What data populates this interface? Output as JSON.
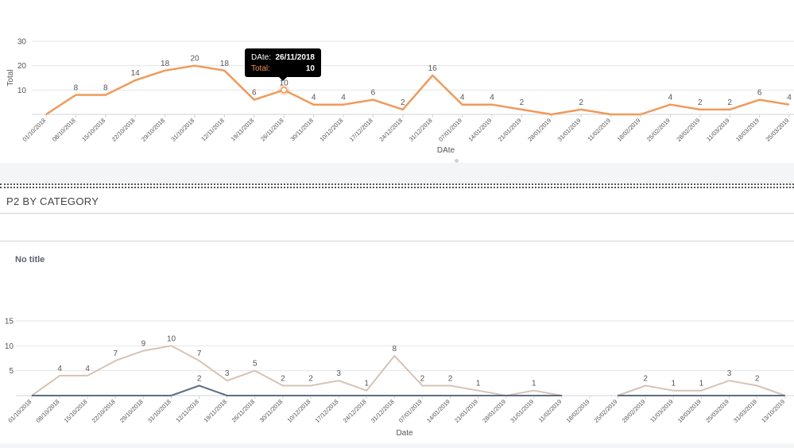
{
  "section": {
    "title": "P2 BY CATEGORY",
    "subtitle": "No title"
  },
  "tooltip": {
    "key_date": "DAte:",
    "value_date": "26/11/2018",
    "key_total": "Total:",
    "value_total": "10"
  },
  "chart_data": [
    {
      "type": "line",
      "xlabel": "DAte",
      "ylabel": "Total",
      "ylim": [
        0,
        30
      ],
      "yticks": [
        10,
        20,
        30
      ],
      "grid": true,
      "color": "#ef9a5b",
      "categories": [
        "01/10/2018",
        "08/10/2018",
        "15/10/2018",
        "22/10/2018",
        "29/10/2018",
        "31/10/2018",
        "12/11/2018",
        "19/11/2018",
        "26/11/2018",
        "30/11/2018",
        "10/12/2018",
        "17/12/2018",
        "24/12/2018",
        "31/12/2018",
        "07/01/2019",
        "14/01/2019",
        "21/01/2019",
        "28/01/2019",
        "31/01/2019",
        "11/02/2019",
        "18/02/2019",
        "25/02/2019",
        "28/02/2019",
        "11/03/2019",
        "18/03/2019",
        "25/03/2019"
      ],
      "series": [
        {
          "values": [
            0,
            8,
            8,
            14,
            18,
            20,
            18,
            6,
            10,
            4,
            4,
            6,
            2,
            16,
            4,
            4,
            2,
            0,
            2,
            0,
            0,
            4,
            2,
            2,
            6,
            4
          ],
          "labels": [
            "",
            "8",
            "8",
            "14",
            "18",
            "20",
            "18",
            "6",
            "10",
            "4",
            "4",
            "6",
            "2",
            "16",
            "4",
            "4",
            "2",
            "",
            "2",
            "",
            "",
            "4",
            "2",
            "2",
            "6",
            "4"
          ]
        }
      ]
    },
    {
      "type": "line",
      "xlabel": "Date",
      "ylabel": "",
      "ylim": [
        0,
        15
      ],
      "yticks": [
        5,
        10,
        15
      ],
      "grid": true,
      "categories": [
        "01/10/2018",
        "08/10/2018",
        "15/10/2018",
        "22/10/2018",
        "29/10/2018",
        "31/10/2018",
        "12/11/2018",
        "19/11/2018",
        "26/11/2018",
        "30/11/2018",
        "10/12/2018",
        "17/12/2018",
        "24/12/2018",
        "31/12/2018",
        "07/01/2019",
        "14/01/2019",
        "21/01/2019",
        "28/01/2019",
        "31/01/2019",
        "11/02/2019",
        "18/02/2019",
        "25/02/2019",
        "28/02/2019",
        "11/03/2019",
        "18/03/2019",
        "25/03/2019",
        "31/03/2019",
        "13/10/2019"
      ],
      "series": [
        {
          "color": "#d6c3b6",
          "values": [
            0,
            4,
            4,
            7,
            9,
            10,
            7,
            3,
            5,
            2,
            2,
            3,
            1,
            8,
            2,
            2,
            1,
            0,
            1,
            0,
            null,
            0,
            2,
            1,
            1,
            3,
            2,
            0
          ],
          "labels": [
            "",
            "4",
            "4",
            "7",
            "9",
            "10",
            "7",
            "3",
            "5",
            "2",
            "2",
            "3",
            "1",
            "8",
            "2",
            "2",
            "1",
            "",
            "1",
            "",
            "",
            "",
            "2",
            "1",
            "1",
            "3",
            "2",
            ""
          ]
        },
        {
          "color": "#5e6f84",
          "values": [
            0,
            0,
            0,
            0,
            0,
            0,
            2,
            0,
            0,
            0,
            0,
            0,
            0,
            0,
            0,
            0,
            0,
            0,
            0,
            0,
            null,
            0,
            0,
            0,
            0,
            0,
            0,
            0
          ],
          "labels": [
            "",
            "",
            "",
            "",
            "",
            "",
            "2",
            "",
            "",
            "",
            "",
            "",
            "",
            "",
            "",
            "",
            "",
            "",
            "",
            "",
            "",
            "",
            "",
            "",
            "",
            "",
            "",
            ""
          ]
        }
      ]
    }
  ]
}
